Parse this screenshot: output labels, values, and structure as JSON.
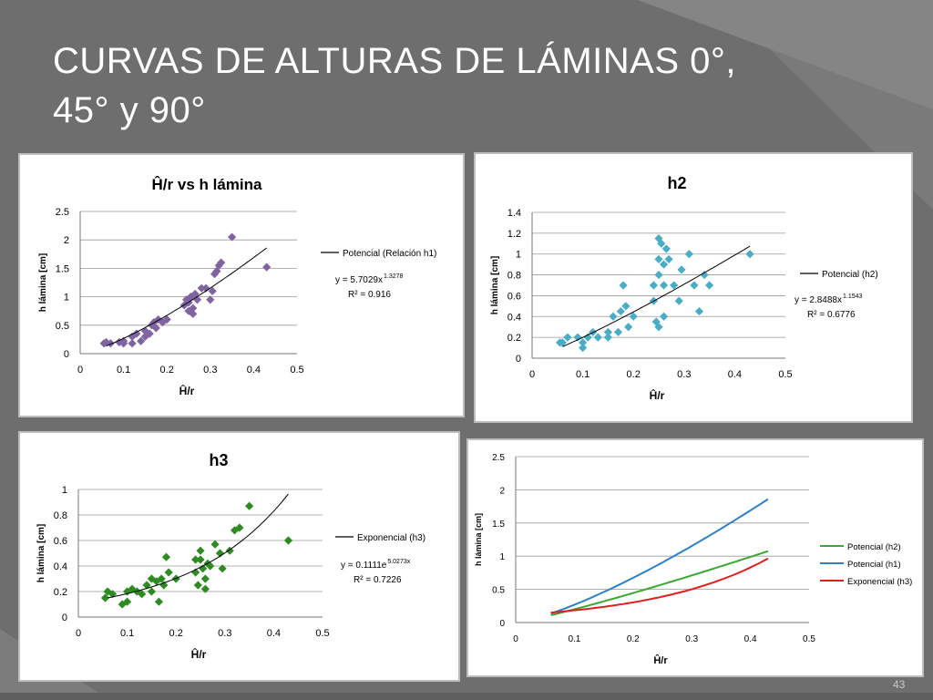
{
  "slide": {
    "title_line1": "CURVAS DE ALTURAS DE LÁMINAS 0°,",
    "title_line2": "45° y 90°",
    "page_number": "43"
  },
  "chart_data": [
    {
      "id": "c1",
      "type": "scatter",
      "title": "Ĥ/r vs h lámina",
      "xlabel": "Ĥ/r",
      "ylabel": "h lámina  [cm]",
      "xlim": [
        0,
        0.5
      ],
      "ylim": [
        0,
        2.5
      ],
      "xticks": [
        "0",
        "0.1",
        "0.2",
        "0.3",
        "0.4",
        "0.5"
      ],
      "yticks": [
        "0",
        "0.5",
        "1",
        "1.5",
        "2",
        "2.5"
      ],
      "grid": true,
      "legend_position": "right",
      "marker": "diamond",
      "marker_color": "#8064a2",
      "points": [
        [
          0.055,
          0.18
        ],
        [
          0.06,
          0.2
        ],
        [
          0.07,
          0.18
        ],
        [
          0.09,
          0.2
        ],
        [
          0.1,
          0.22
        ],
        [
          0.1,
          0.18
        ],
        [
          0.12,
          0.3
        ],
        [
          0.12,
          0.18
        ],
        [
          0.13,
          0.35
        ],
        [
          0.14,
          0.22
        ],
        [
          0.15,
          0.4
        ],
        [
          0.15,
          0.3
        ],
        [
          0.16,
          0.35
        ],
        [
          0.165,
          0.5
        ],
        [
          0.17,
          0.55
        ],
        [
          0.175,
          0.45
        ],
        [
          0.18,
          0.6
        ],
        [
          0.19,
          0.55
        ],
        [
          0.2,
          0.6
        ],
        [
          0.24,
          0.85
        ],
        [
          0.245,
          0.95
        ],
        [
          0.25,
          0.9
        ],
        [
          0.25,
          0.75
        ],
        [
          0.255,
          1.0
        ],
        [
          0.26,
          0.8
        ],
        [
          0.26,
          0.7
        ],
        [
          0.265,
          1.05
        ],
        [
          0.27,
          0.95
        ],
        [
          0.28,
          1.15
        ],
        [
          0.29,
          1.15
        ],
        [
          0.3,
          0.95
        ],
        [
          0.305,
          1.1
        ],
        [
          0.31,
          1.4
        ],
        [
          0.315,
          1.45
        ],
        [
          0.32,
          1.55
        ],
        [
          0.325,
          1.6
        ],
        [
          0.35,
          2.05
        ],
        [
          0.43,
          1.52
        ]
      ],
      "trendline": {
        "kind": "power",
        "a": 5.7029,
        "b": 1.3278,
        "x_range": [
          0.06,
          0.43
        ]
      },
      "legend_label": "Potencial (Relación h1)",
      "equation": "y = 5.7029x",
      "equation_exp": "1.3278",
      "r2": "R² = 0.916"
    },
    {
      "id": "c2",
      "type": "scatter",
      "title": "h2",
      "xlabel": "Ĥ/r",
      "ylabel": "h lámina  [cm]",
      "xlim": [
        0,
        0.5
      ],
      "ylim": [
        0,
        1.4
      ],
      "xticks": [
        "0",
        "0.1",
        "0.2",
        "0.3",
        "0.4",
        "0.5"
      ],
      "yticks": [
        "0",
        "0.2",
        "0.4",
        "0.6",
        "0.8",
        "1",
        "1.2",
        "1.4"
      ],
      "grid": true,
      "legend_position": "right",
      "marker": "diamond",
      "marker_color": "#4bacc6",
      "points": [
        [
          0.055,
          0.15
        ],
        [
          0.06,
          0.15
        ],
        [
          0.07,
          0.2
        ],
        [
          0.09,
          0.2
        ],
        [
          0.1,
          0.1
        ],
        [
          0.1,
          0.15
        ],
        [
          0.11,
          0.2
        ],
        [
          0.12,
          0.25
        ],
        [
          0.13,
          0.2
        ],
        [
          0.15,
          0.25
        ],
        [
          0.15,
          0.2
        ],
        [
          0.16,
          0.4
        ],
        [
          0.17,
          0.25
        ],
        [
          0.175,
          0.45
        ],
        [
          0.18,
          0.7
        ],
        [
          0.185,
          0.5
        ],
        [
          0.19,
          0.3
        ],
        [
          0.2,
          0.4
        ],
        [
          0.24,
          0.7
        ],
        [
          0.24,
          0.55
        ],
        [
          0.245,
          0.35
        ],
        [
          0.25,
          1.15
        ],
        [
          0.25,
          0.95
        ],
        [
          0.25,
          0.8
        ],
        [
          0.25,
          0.3
        ],
        [
          0.255,
          1.1
        ],
        [
          0.26,
          0.9
        ],
        [
          0.26,
          0.7
        ],
        [
          0.26,
          0.4
        ],
        [
          0.265,
          1.05
        ],
        [
          0.27,
          0.95
        ],
        [
          0.28,
          0.7
        ],
        [
          0.29,
          0.55
        ],
        [
          0.295,
          0.85
        ],
        [
          0.31,
          1.0
        ],
        [
          0.32,
          0.7
        ],
        [
          0.33,
          0.45
        ],
        [
          0.34,
          0.8
        ],
        [
          0.35,
          0.7
        ],
        [
          0.43,
          1.0
        ]
      ],
      "trendline": {
        "kind": "power",
        "a": 2.8488,
        "b": 1.1543,
        "x_range": [
          0.06,
          0.43
        ]
      },
      "legend_label": "Potencial (h2)",
      "equation": "y = 2.8488x",
      "equation_exp": "1.1543",
      "r2": "R² = 0.6776"
    },
    {
      "id": "c3",
      "type": "scatter",
      "title": "h3",
      "xlabel": "Ĥ/r",
      "ylabel": "h lámina  [cm]",
      "xlim": [
        0,
        0.5
      ],
      "ylim": [
        0,
        1
      ],
      "xticks": [
        "0",
        "0.1",
        "0.2",
        "0.3",
        "0.4",
        "0.5"
      ],
      "yticks": [
        "0",
        "0.2",
        "0.4",
        "0.6",
        "0.8",
        "1"
      ],
      "grid": true,
      "legend_position": "right",
      "marker": "diamond",
      "marker_color": "#2e8b22",
      "points": [
        [
          0.055,
          0.15
        ],
        [
          0.06,
          0.2
        ],
        [
          0.07,
          0.18
        ],
        [
          0.09,
          0.1
        ],
        [
          0.1,
          0.12
        ],
        [
          0.1,
          0.2
        ],
        [
          0.11,
          0.22
        ],
        [
          0.12,
          0.2
        ],
        [
          0.13,
          0.18
        ],
        [
          0.14,
          0.25
        ],
        [
          0.15,
          0.3
        ],
        [
          0.15,
          0.2
        ],
        [
          0.16,
          0.28
        ],
        [
          0.165,
          0.12
        ],
        [
          0.17,
          0.3
        ],
        [
          0.175,
          0.25
        ],
        [
          0.18,
          0.47
        ],
        [
          0.185,
          0.35
        ],
        [
          0.2,
          0.3
        ],
        [
          0.24,
          0.35
        ],
        [
          0.24,
          0.45
        ],
        [
          0.245,
          0.25
        ],
        [
          0.25,
          0.52
        ],
        [
          0.25,
          0.45
        ],
        [
          0.255,
          0.38
        ],
        [
          0.26,
          0.3
        ],
        [
          0.26,
          0.22
        ],
        [
          0.265,
          0.42
        ],
        [
          0.27,
          0.4
        ],
        [
          0.28,
          0.57
        ],
        [
          0.29,
          0.5
        ],
        [
          0.295,
          0.38
        ],
        [
          0.31,
          0.52
        ],
        [
          0.32,
          0.68
        ],
        [
          0.33,
          0.7
        ],
        [
          0.35,
          0.87
        ],
        [
          0.43,
          0.6
        ]
      ],
      "trendline": {
        "kind": "exponential",
        "a": 0.1111,
        "b": 5.0273,
        "x_range": [
          0.06,
          0.43
        ]
      },
      "legend_label": "Exponencial (h3)",
      "equation": "y = 0.1111e",
      "equation_exp": "5.0273x",
      "r2": "R² = 0.7226"
    },
    {
      "id": "c4",
      "type": "line",
      "title": "",
      "xlabel": "Ĥ/r",
      "ylabel": "h lámina  [cm]",
      "xlim": [
        0,
        0.5
      ],
      "ylim": [
        0,
        2.5
      ],
      "xticks": [
        "0",
        "0.1",
        "0.2",
        "0.3",
        "0.4",
        "0.5"
      ],
      "yticks": [
        "0",
        "0.5",
        "1",
        "1.5",
        "2",
        "2.5"
      ],
      "grid": true,
      "legend_position": "right",
      "series": [
        {
          "name": "Potencial (h2)",
          "color": "#3aa832",
          "kind": "power",
          "a": 2.8488,
          "b": 1.1543,
          "x_range": [
            0.06,
            0.43
          ]
        },
        {
          "name": "Potencial (h1)",
          "color": "#2e7fc4",
          "kind": "power",
          "a": 5.7029,
          "b": 1.3278,
          "x_range": [
            0.06,
            0.43
          ]
        },
        {
          "name": "Exponencial (h3)",
          "color": "#e02020",
          "kind": "exponential",
          "a": 0.1111,
          "b": 5.0273,
          "x_range": [
            0.06,
            0.43
          ]
        }
      ]
    }
  ]
}
